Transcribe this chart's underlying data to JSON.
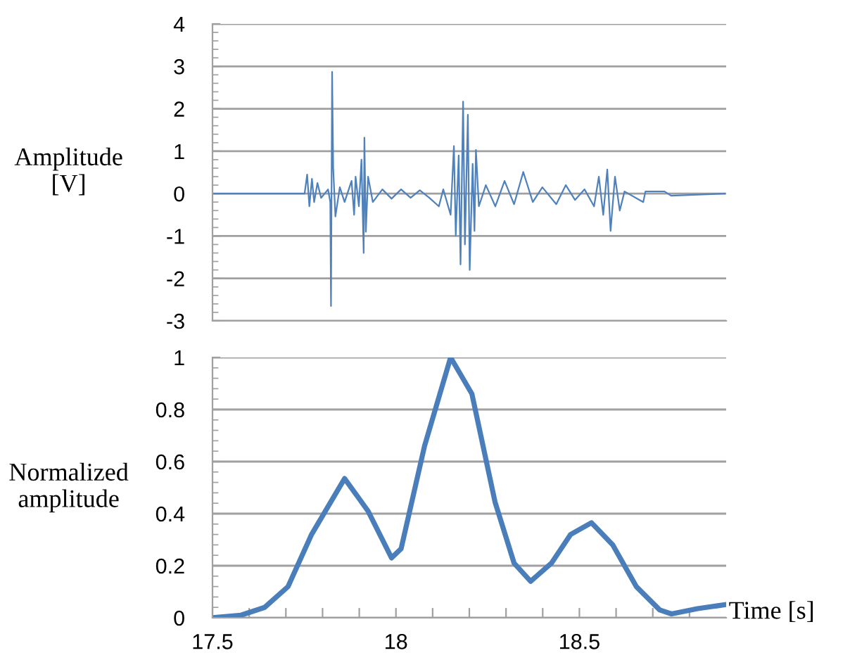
{
  "chart_data": [
    {
      "type": "line",
      "ylabel": "Amplitude\n[V]",
      "xlim": [
        17.5,
        18.9
      ],
      "ylim": [
        -3,
        4
      ],
      "yticks": [
        -3,
        -2,
        -1,
        0,
        1,
        2,
        3,
        4
      ],
      "tick_labels": "y",
      "grid": "y",
      "marker": "none",
      "line_style": "solid",
      "series": [
        {
          "color": "#4f81bd",
          "x": [
            17.5,
            17.751,
            17.758,
            17.764,
            17.771,
            17.777,
            17.786,
            17.796,
            17.815,
            17.821,
            17.823,
            17.826,
            17.829,
            17.835,
            17.847,
            17.86,
            17.879,
            17.886,
            17.89,
            17.899,
            17.906,
            17.912,
            17.914,
            17.918,
            17.924,
            17.937,
            17.963,
            17.988,
            18.014,
            18.04,
            18.065,
            18.091,
            18.117,
            18.129,
            18.149,
            18.158,
            18.163,
            18.171,
            18.176,
            18.183,
            18.188,
            18.196,
            18.201,
            18.209,
            18.214,
            18.218,
            18.226,
            18.245,
            18.271,
            18.296,
            18.322,
            18.347,
            18.373,
            18.399,
            18.437,
            18.463,
            18.488,
            18.514,
            18.54,
            18.553,
            18.565,
            18.576,
            18.585,
            18.597,
            18.61,
            18.623,
            18.674,
            18.68,
            18.732,
            18.75,
            18.896
          ],
          "values": [
            0,
            0,
            0.45,
            -0.3,
            0.35,
            -0.2,
            0.25,
            -0.1,
            0.1,
            -0.2,
            -2.65,
            2.87,
            0.6,
            -0.54,
            0.15,
            -0.2,
            0.3,
            -0.5,
            0.4,
            -0.3,
            0.8,
            -1.4,
            1.32,
            -0.9,
            0.4,
            -0.2,
            0.1,
            -0.12,
            0.1,
            -0.1,
            0.08,
            -0.1,
            -0.3,
            0.1,
            -0.5,
            1.12,
            -0.99,
            0.9,
            -1.67,
            2.17,
            -1.2,
            1.86,
            -1.8,
            0.7,
            -0.88,
            1.03,
            -0.3,
            0.2,
            -0.3,
            0.3,
            -0.25,
            0.51,
            -0.2,
            0.15,
            -0.25,
            0.2,
            -0.15,
            0.1,
            -0.3,
            0.4,
            -0.5,
            0.57,
            -0.88,
            0.4,
            -0.4,
            0.05,
            -0.2,
            0.05,
            0.05,
            -0.05,
            0
          ]
        }
      ]
    },
    {
      "type": "line",
      "ylabel": "Normalized\namplitude",
      "xlabel": "Time [s]",
      "xlim": [
        17.5,
        18.9
      ],
      "ylim": [
        0,
        1
      ],
      "yticks": [
        0,
        0.2,
        0.4,
        0.6,
        0.8,
        1
      ],
      "xticks": [
        17.5,
        {
          "value": 17.6,
          "label": null
        },
        {
          "value": 17.7,
          "label": null
        },
        {
          "value": 17.8,
          "label": null
        },
        {
          "value": 17.9,
          "label": null
        },
        18,
        {
          "value": 18.1,
          "label": null
        },
        {
          "value": 18.2,
          "label": null
        },
        {
          "value": 18.3,
          "label": null
        },
        {
          "value": 18.4,
          "label": null
        },
        18.5,
        {
          "value": 18.6,
          "label": null
        },
        {
          "value": 18.7,
          "label": null
        },
        {
          "value": 18.8,
          "label": null
        }
      ],
      "grid": "y",
      "marker": "none",
      "line_style": "solid",
      "series": [
        {
          "color": "#4a7ebb",
          "x": [
            17.5,
            17.578,
            17.642,
            17.706,
            17.77,
            17.86,
            17.924,
            17.988,
            18.014,
            18.078,
            18.149,
            18.207,
            18.27,
            18.322,
            18.367,
            18.424,
            18.476,
            18.533,
            18.591,
            18.655,
            18.719,
            18.751,
            18.822,
            18.896
          ],
          "values": [
            0,
            0.01,
            0.04,
            0.12,
            0.32,
            0.535,
            0.41,
            0.23,
            0.265,
            0.66,
            1.0,
            0.86,
            0.445,
            0.21,
            0.14,
            0.21,
            0.32,
            0.365,
            0.28,
            0.12,
            0.03,
            0.015,
            0.035,
            0.05
          ]
        }
      ]
    }
  ]
}
